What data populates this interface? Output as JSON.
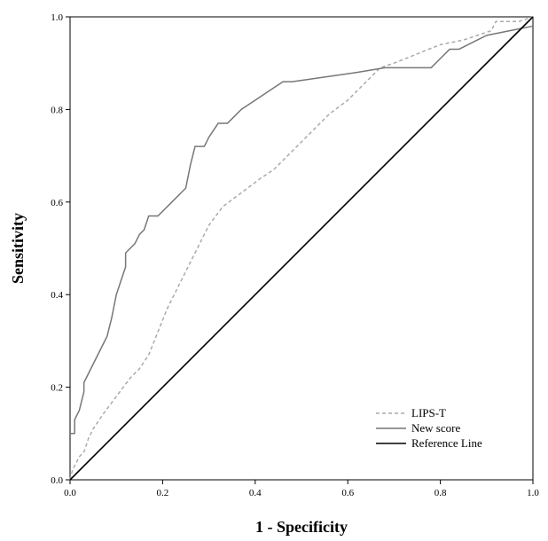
{
  "chart_data": {
    "type": "line",
    "title": "",
    "xlabel": "1 - Specificity",
    "ylabel": "Sensitivity",
    "xlim": [
      0,
      1
    ],
    "ylim": [
      0,
      1
    ],
    "x_ticks": [
      "0.0",
      "0.2",
      "0.4",
      "0.6",
      "0.8",
      "1.0"
    ],
    "y_ticks": [
      "0.0",
      "0.2",
      "0.4",
      "0.6",
      "0.8",
      "1.0"
    ],
    "grid": false,
    "legend_position": "bottom-right",
    "series": [
      {
        "name": "LIPS-T",
        "style": "dashed",
        "color": "#aaaaaa",
        "points": [
          [
            0,
            0
          ],
          [
            0.005,
            0.02
          ],
          [
            0.01,
            0.03
          ],
          [
            0.02,
            0.05
          ],
          [
            0.03,
            0.06
          ],
          [
            0.04,
            0.09
          ],
          [
            0.05,
            0.11
          ],
          [
            0.07,
            0.14
          ],
          [
            0.1,
            0.18
          ],
          [
            0.13,
            0.22
          ],
          [
            0.15,
            0.24
          ],
          [
            0.17,
            0.27
          ],
          [
            0.19,
            0.32
          ],
          [
            0.21,
            0.37
          ],
          [
            0.24,
            0.43
          ],
          [
            0.27,
            0.49
          ],
          [
            0.3,
            0.55
          ],
          [
            0.33,
            0.59
          ],
          [
            0.37,
            0.62
          ],
          [
            0.41,
            0.65
          ],
          [
            0.44,
            0.67
          ],
          [
            0.48,
            0.71
          ],
          [
            0.52,
            0.75
          ],
          [
            0.56,
            0.79
          ],
          [
            0.6,
            0.82
          ],
          [
            0.64,
            0.86
          ],
          [
            0.67,
            0.89
          ],
          [
            0.7,
            0.9
          ],
          [
            0.75,
            0.92
          ],
          [
            0.8,
            0.94
          ],
          [
            0.85,
            0.95
          ],
          [
            0.88,
            0.96
          ],
          [
            0.91,
            0.97
          ],
          [
            0.92,
            0.99
          ],
          [
            0.97,
            0.99
          ],
          [
            1,
            1
          ]
        ]
      },
      {
        "name": "New score",
        "style": "solid",
        "color": "#777777",
        "points": [
          [
            0,
            0.1
          ],
          [
            0.01,
            0.1
          ],
          [
            0.01,
            0.13
          ],
          [
            0.02,
            0.15
          ],
          [
            0.03,
            0.19
          ],
          [
            0.03,
            0.21
          ],
          [
            0.05,
            0.25
          ],
          [
            0.07,
            0.29
          ],
          [
            0.08,
            0.31
          ],
          [
            0.09,
            0.35
          ],
          [
            0.1,
            0.4
          ],
          [
            0.11,
            0.43
          ],
          [
            0.12,
            0.46
          ],
          [
            0.12,
            0.49
          ],
          [
            0.14,
            0.51
          ],
          [
            0.15,
            0.53
          ],
          [
            0.16,
            0.54
          ],
          [
            0.17,
            0.57
          ],
          [
            0.19,
            0.57
          ],
          [
            0.2,
            0.58
          ],
          [
            0.22,
            0.6
          ],
          [
            0.25,
            0.63
          ],
          [
            0.26,
            0.68
          ],
          [
            0.27,
            0.72
          ],
          [
            0.28,
            0.72
          ],
          [
            0.29,
            0.72
          ],
          [
            0.3,
            0.74
          ],
          [
            0.32,
            0.77
          ],
          [
            0.34,
            0.77
          ],
          [
            0.37,
            0.8
          ],
          [
            0.4,
            0.82
          ],
          [
            0.43,
            0.84
          ],
          [
            0.46,
            0.86
          ],
          [
            0.48,
            0.86
          ],
          [
            0.55,
            0.87
          ],
          [
            0.62,
            0.88
          ],
          [
            0.68,
            0.89
          ],
          [
            0.78,
            0.89
          ],
          [
            0.8,
            0.91
          ],
          [
            0.82,
            0.93
          ],
          [
            0.84,
            0.93
          ],
          [
            0.88,
            0.95
          ],
          [
            0.9,
            0.96
          ],
          [
            0.95,
            0.97
          ],
          [
            1,
            0.98
          ]
        ]
      },
      {
        "name": "Reference Line",
        "style": "solid",
        "color": "#000000",
        "points": [
          [
            0,
            0
          ],
          [
            1,
            1
          ]
        ]
      }
    ]
  }
}
